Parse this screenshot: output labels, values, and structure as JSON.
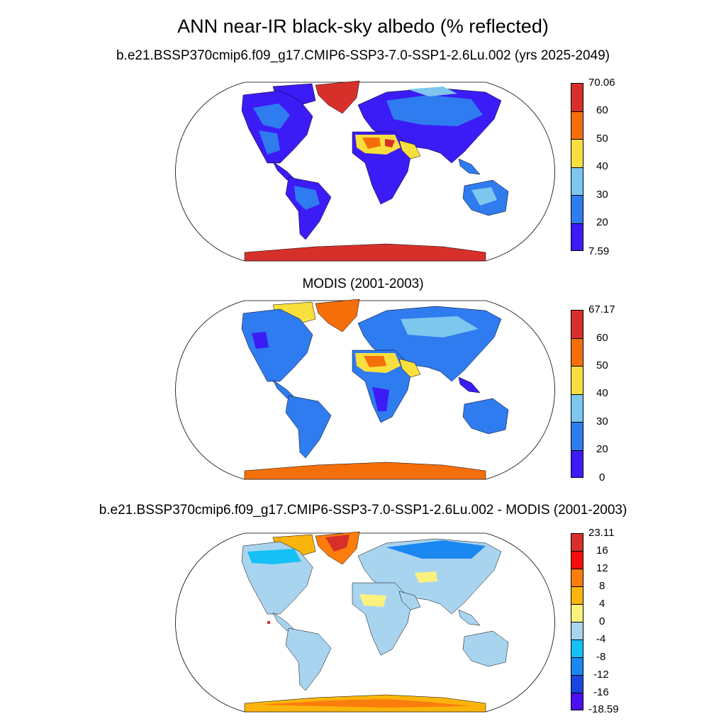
{
  "title": "ANN near-IR black-sky albedo (% reflected)",
  "panels": [
    {
      "title": "b.e21.BSSP370cmip6.f09_g17.CMIP6-SSP3-7.0-SSP1-2.6Lu.002 (yrs 2025-2049)",
      "colorbar": {
        "max_label": "70.06",
        "min_label": "7.59",
        "levels": [
          "60",
          "50",
          "40",
          "30",
          "20"
        ],
        "colors": [
          "#d7302b",
          "#f46e0a",
          "#f9df3d",
          "#7dc6ee",
          "#2f7bf0",
          "#3c1cf6"
        ]
      }
    },
    {
      "title": "MODIS (2001-2003)",
      "colorbar": {
        "max_label": "67.17",
        "min_label": "0",
        "levels": [
          "60",
          "50",
          "40",
          "30",
          "20"
        ],
        "colors": [
          "#d7302b",
          "#f46e0a",
          "#f9df3d",
          "#7dc6ee",
          "#2f7bf0",
          "#3c1cf6"
        ]
      }
    },
    {
      "title": "b.e21.BSSP370cmip6.f09_g17.CMIP6-SSP3-7.0-SSP1-2.6Lu.002 - MODIS (2001-2003)",
      "colorbar": {
        "max_label": "23.11",
        "min_label": "-18.59",
        "levels": [
          "16",
          "12",
          "8",
          "4",
          "0",
          "-4",
          "-8",
          "-12",
          "-16"
        ],
        "colors": [
          "#d7302b",
          "#fb0c0c",
          "#fb7d0c",
          "#fbb40c",
          "#fbf27e",
          "#a9d4f0",
          "#14c0f5",
          "#1b87f0",
          "#1a45dc",
          "#4a10f0"
        ]
      }
    }
  ]
}
